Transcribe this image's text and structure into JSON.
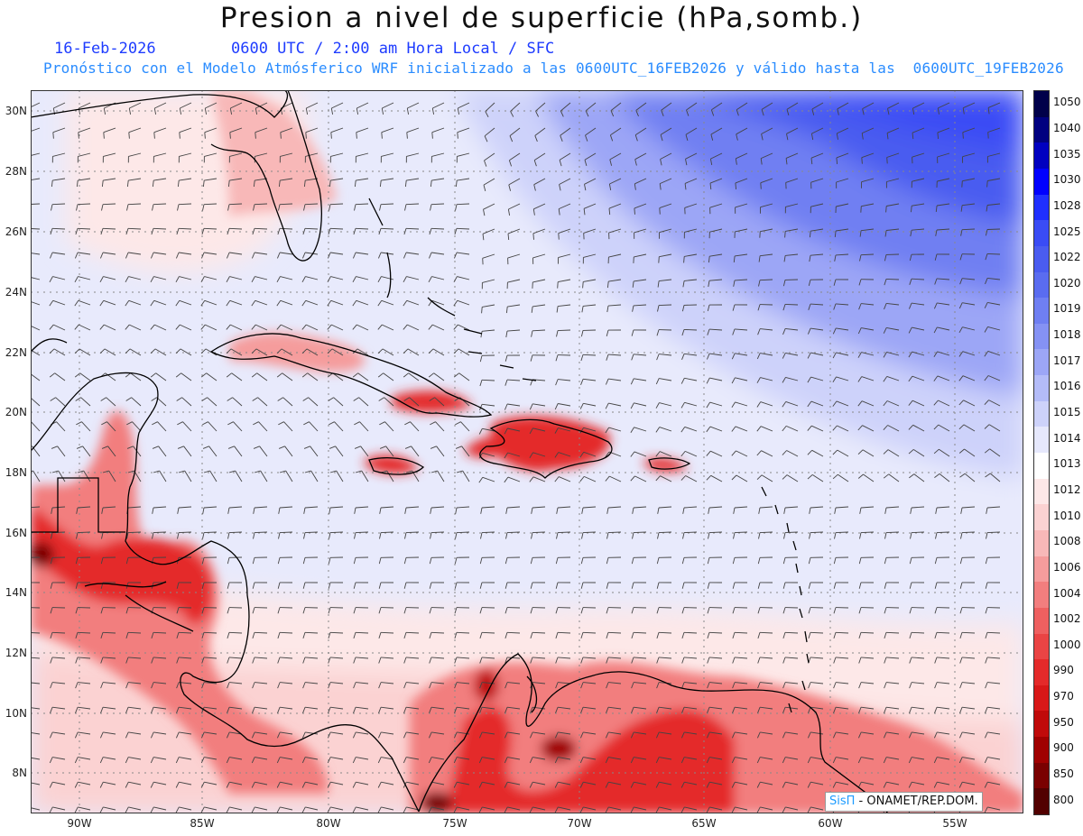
{
  "header": {
    "title": "Presion a nivel de superficie (hPa,somb.)",
    "date": "16-Feb-2026",
    "time_info": "0600 UTC / 2:00 am Hora Local / SFC",
    "model_line": "Pronóstico con el Modelo Atmósferico WRF inicializado a las 0600UTC_16FEB2026 y válido hasta las  0600UTC_19FEB2026"
  },
  "axes": {
    "lat_labels": [
      "30N",
      "28N",
      "26N",
      "24N",
      "22N",
      "20N",
      "18N",
      "16N",
      "14N",
      "12N",
      "10N",
      "8N"
    ],
    "lon_labels": [
      "90W",
      "85W",
      "80W",
      "75W",
      "70W",
      "65W",
      "60W",
      "55W"
    ],
    "lat_range": [
      6.7,
      30.8
    ],
    "lon_range": [
      -91.8,
      -52.4
    ]
  },
  "colorbar": {
    "labels": [
      "1050",
      "1040",
      "1035",
      "1030",
      "1028",
      "1025",
      "1022",
      "1020",
      "1019",
      "1018",
      "1017",
      "1016",
      "1015",
      "1014",
      "1013",
      "1012",
      "1010",
      "1008",
      "1006",
      "1004",
      "1002",
      "1000",
      "990",
      "970",
      "950",
      "900",
      "850",
      "800"
    ],
    "colors": [
      "#00004a",
      "#000080",
      "#0000c0",
      "#0000ff",
      "#1f2fff",
      "#3a4cf5",
      "#4a5cf0",
      "#5a6cf0",
      "#6f7ff2",
      "#8592f4",
      "#9ca6f6",
      "#b4bcf8",
      "#cdd2fa",
      "#e6e8fc",
      "#ffffff",
      "#fde8e8",
      "#fbd2d2",
      "#f8b8b8",
      "#f59c9c",
      "#f27e7e",
      "#ee6060",
      "#ea4444",
      "#e42a2a",
      "#d81818",
      "#c00a0a",
      "#a00000",
      "#7a0000",
      "#520000"
    ]
  },
  "credit": {
    "sis": "SisΠ",
    "rest": " - ONAMET/REP.DOM."
  },
  "style": {
    "land_outline": "#000000",
    "barb_color": "#444444",
    "grid_color": "#888888"
  }
}
